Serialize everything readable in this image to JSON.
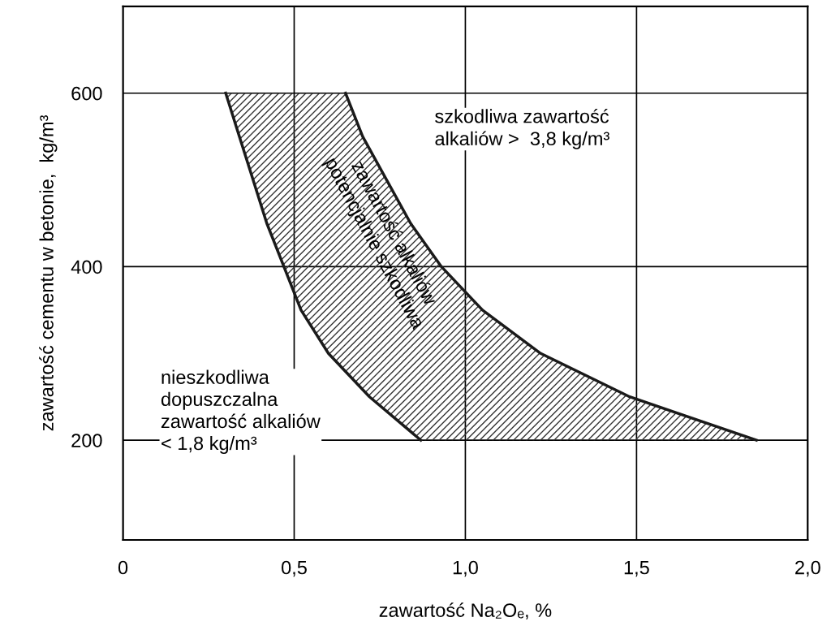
{
  "chart_data": {
    "type": "line",
    "xlabel": "zawartość Na₂Oₑ, %",
    "ylabel": "zawartość cementu w betonie,  kg/m³",
    "xlim": [
      0,
      2.0
    ],
    "ylim": [
      85,
      700
    ],
    "xticks": [
      0,
      {
        "value": 0.5,
        "label": "0,5"
      },
      {
        "value": 1.0,
        "label": "1,0"
      },
      {
        "value": 1.5,
        "label": "1,5"
      },
      {
        "value": 2.0,
        "label": "2,0"
      }
    ],
    "yticks": [
      200,
      400,
      600
    ],
    "grid": true,
    "marker": "none",
    "line_style": "solid",
    "series": [
      {
        "color": "#1a1a1a",
        "x": [
          0.3,
          0.34,
          0.38,
          0.42,
          0.47,
          0.52,
          0.6,
          0.72,
          0.87
        ],
        "values": [
          600,
          550,
          500,
          450,
          400,
          350,
          300,
          250,
          200
        ]
      },
      {
        "color": "#1a1a1a",
        "x": [
          0.65,
          0.7,
          0.77,
          0.84,
          0.93,
          1.05,
          1.22,
          1.48,
          1.85
        ],
        "values": [
          600,
          550,
          500,
          450,
          400,
          350,
          300,
          250,
          200
        ]
      }
    ],
    "annotations": [
      "szkodliwa zawartość\nalkaliów >  3,8 kg/m³",
      "zawartość alkaliów\npotencjalnie szkodliwa",
      "nieszkodliwa\ndopuszczalna\nzawartość alkaliów\n< 1,8 kg/m³"
    ]
  }
}
